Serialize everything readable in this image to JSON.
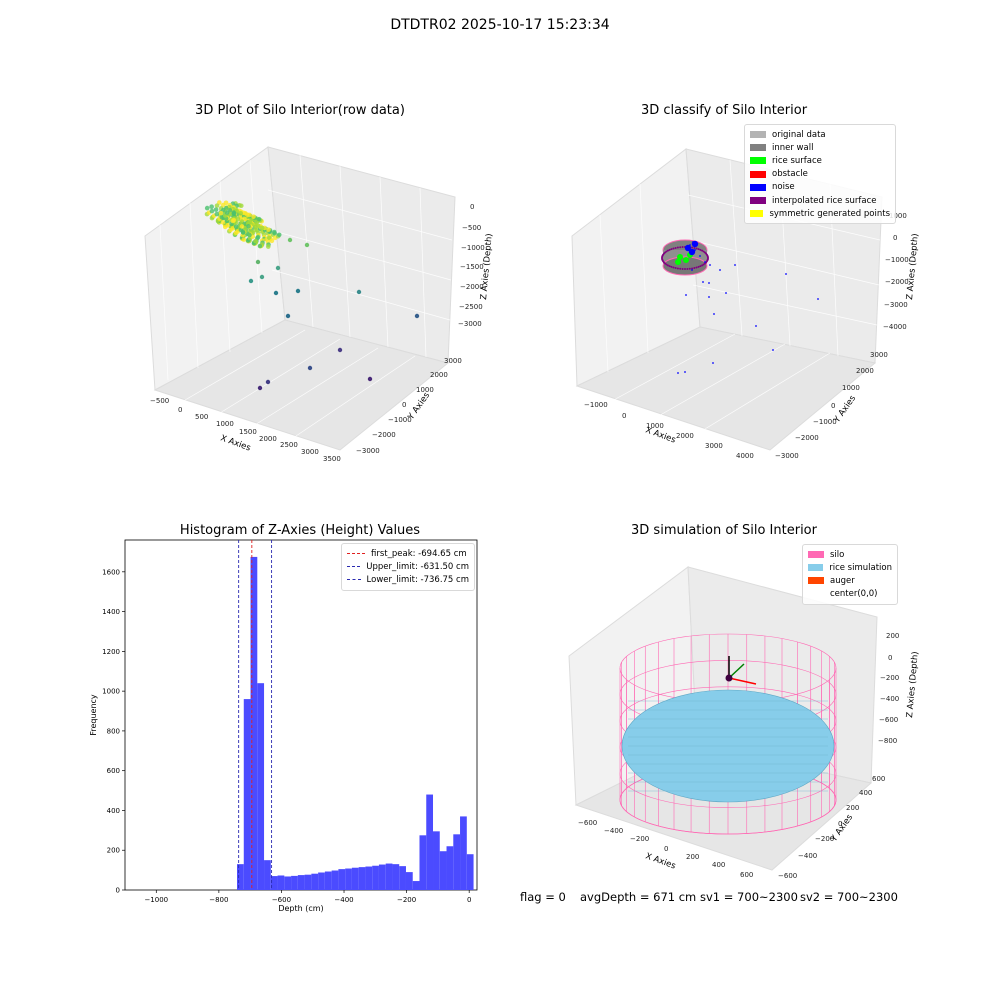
{
  "figure_title": "DTDTR02 2025-10-17 15:23:34",
  "status": {
    "flag": "flag = 0",
    "avg_depth": "avgDepth = 671 cm",
    "sv1": "sv1 = 700~2300",
    "sv2": "sv2 = 700~2300"
  },
  "colors": {
    "hist_bar": "#4b4bff",
    "first_peak_line": "#e02020",
    "limit_lines": "#2a2ab0",
    "silo": "#ff69b4",
    "rice": "#87cdea",
    "auger": "#ff4500",
    "original": "#b3b3b3",
    "inner_wall": "#808080",
    "rice_surface": "#00ff00",
    "obstacle": "#ff0000",
    "noise": "#0000ff",
    "interp": "#800080",
    "symmetric": "#ffff00"
  },
  "chart_data": [
    {
      "type": "scatter",
      "subtype": "3d",
      "title": "3D Plot of Silo Interior(row data)",
      "xlabel": "X Axies",
      "ylabel": "Y Axies",
      "zlabel": "Z Axies (Depth)",
      "xticks": [
        "−500",
        "0",
        "500",
        "1000",
        "1500",
        "2000",
        "2500",
        "3000",
        "3500"
      ],
      "yticks": [
        "−3000",
        "−2000",
        "−1000",
        "0",
        "1000",
        "2000",
        "3000"
      ],
      "zticks": [
        "−3000",
        "−2500",
        "−2000",
        "−1500",
        "−1000",
        "−500",
        "0"
      ],
      "colormap": "viridis",
      "points_note": "dense cluster near x≈0..600, depth≈−500..−1000, plus sparse outliers"
    },
    {
      "type": "scatter",
      "subtype": "3d",
      "title": "3D classify of Silo Interior",
      "xlabel": "X Axies",
      "ylabel": "Y Axies",
      "zlabel": "Z Axies (Depth)",
      "xticks": [
        "−1000",
        "0",
        "1000",
        "2000",
        "3000",
        "4000"
      ],
      "yticks": [
        "−3000",
        "−2000",
        "−1000",
        "0",
        "1000",
        "2000",
        "3000"
      ],
      "zticks": [
        "−4000",
        "−3000",
        "−2000",
        "−1000",
        "0",
        "1000"
      ],
      "legend": [
        {
          "name": "original data",
          "color": "#b3b3b3"
        },
        {
          "name": "inner wall",
          "color": "#808080"
        },
        {
          "name": "rice surface",
          "color": "#00ff00"
        },
        {
          "name": "obstacle",
          "color": "#ff0000"
        },
        {
          "name": "noise",
          "color": "#0000ff"
        },
        {
          "name": "interpolated rice surface",
          "color": "#800080"
        },
        {
          "name": "symmetric generated points",
          "color": "#ffff00"
        }
      ]
    },
    {
      "type": "bar",
      "subtype": "histogram",
      "title": "Histogram of Z-Axies (Height) Values",
      "xlabel": "Depth (cm)",
      "ylabel": "Frequency",
      "xlim": [
        -1100,
        25
      ],
      "ylim": [
        0,
        1760
      ],
      "xticks": [
        -1000,
        -800,
        -600,
        -400,
        -200,
        0
      ],
      "xtick_labels": [
        "−1000",
        "−800",
        "−600",
        "−400",
        "−200",
        "0"
      ],
      "yticks": [
        0,
        200,
        400,
        600,
        800,
        1000,
        1200,
        1400,
        1600
      ],
      "bin_width": 21.6,
      "bins": [
        [
          -742,
          130
        ],
        [
          -720.4,
          960
        ],
        [
          -698.8,
          1675
        ],
        [
          -677.2,
          1040
        ],
        [
          -655.6,
          150
        ],
        [
          -634,
          70
        ],
        [
          -612.4,
          73
        ],
        [
          -590.8,
          68
        ],
        [
          -569.2,
          71
        ],
        [
          -547.6,
          75
        ],
        [
          -526,
          77
        ],
        [
          -504.4,
          82
        ],
        [
          -482.8,
          88
        ],
        [
          -461.2,
          93
        ],
        [
          -439.6,
          98
        ],
        [
          -418,
          105
        ],
        [
          -396.4,
          108
        ],
        [
          -374.8,
          112
        ],
        [
          -353.2,
          115
        ],
        [
          -331.6,
          118
        ],
        [
          -310,
          122
        ],
        [
          -288.4,
          128
        ],
        [
          -266.8,
          133
        ],
        [
          -245.2,
          130
        ],
        [
          -223.6,
          120
        ],
        [
          -202,
          90
        ],
        [
          -180.4,
          45
        ],
        [
          -158.8,
          275
        ],
        [
          -137.2,
          480
        ],
        [
          -115.6,
          295
        ],
        [
          -94,
          195
        ],
        [
          -72.4,
          220
        ],
        [
          -50.8,
          280
        ],
        [
          -29.2,
          370
        ],
        [
          -7.6,
          180
        ]
      ],
      "lines": [
        {
          "label": "first_peak: -694.65 cm",
          "x": -694.65,
          "style": "red-dashed"
        },
        {
          "label": "Upper_limit: -631.50 cm",
          "x": -631.5,
          "style": "blue-dashed"
        },
        {
          "label": "Lower_limit: -736.75 cm",
          "x": -736.75,
          "style": "blue-dashed"
        }
      ],
      "legend_position": "upper-right"
    },
    {
      "type": "area",
      "subtype": "3d-surface",
      "title": "3D simulation of Silo Interior",
      "xlabel": "X Axies",
      "ylabel": "Y Axies",
      "zlabel": "Z Axies (Depth)",
      "xticks": [
        "−600",
        "−400",
        "−200",
        "0",
        "200",
        "400",
        "600"
      ],
      "yticks": [
        "−600",
        "−400",
        "−200",
        "0",
        "200",
        "400",
        "600"
      ],
      "zticks": [
        "−800",
        "−600",
        "−400",
        "−200",
        "0",
        "200"
      ],
      "legend": [
        {
          "name": "silo",
          "color": "#ff69b4"
        },
        {
          "name": "rice simulation",
          "color": "#87cdea"
        },
        {
          "name": "auger",
          "color": "#ff4500"
        },
        {
          "name": "center(0,0)",
          "color": ""
        }
      ]
    }
  ]
}
